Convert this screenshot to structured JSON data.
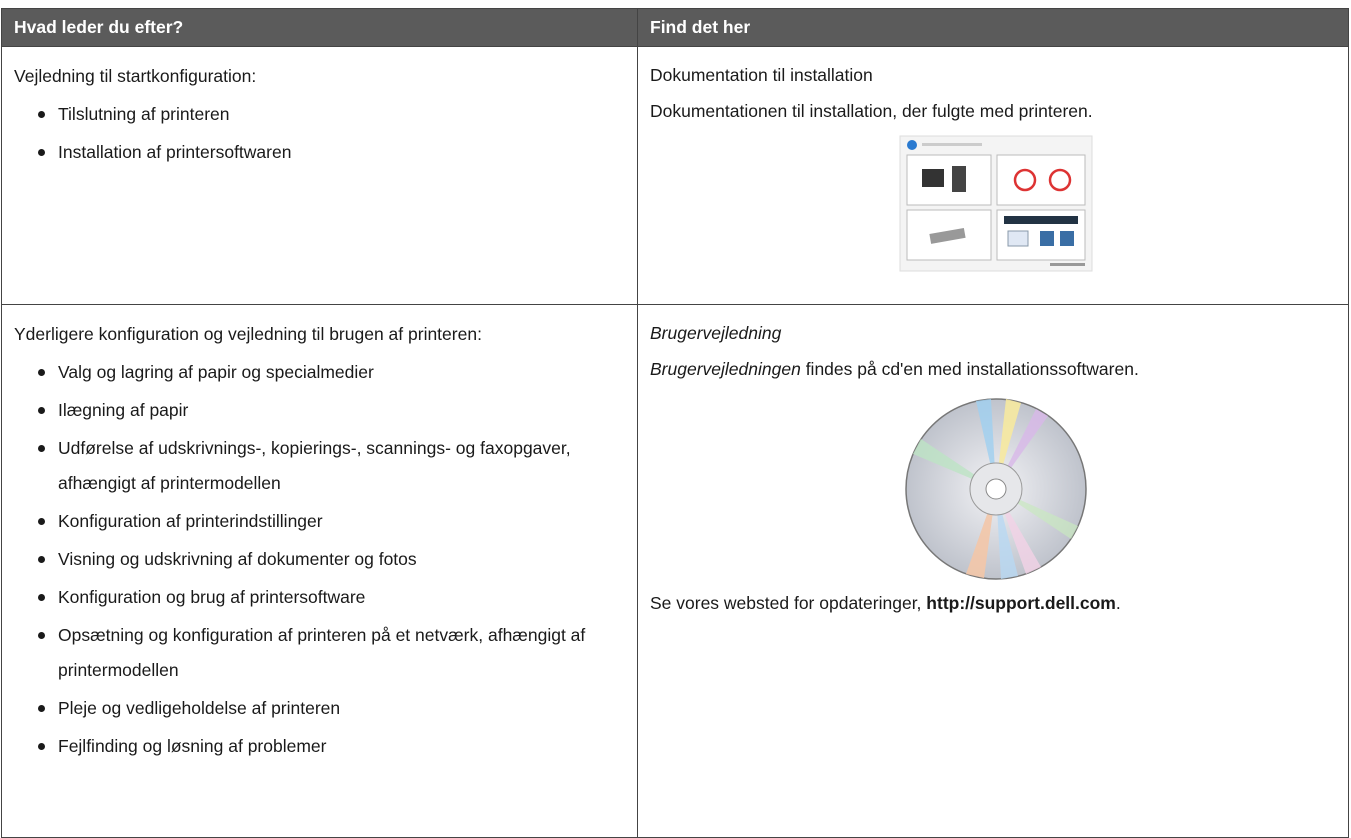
{
  "table": {
    "headers": [
      "Hvad leder du efter?",
      "Find det her"
    ],
    "rows": [
      {
        "left": {
          "intro": "Vejledning til startkonfiguration:",
          "items": [
            "Tilslutning af printeren",
            "Installation af printersoftwaren"
          ]
        },
        "right": {
          "title": "Dokumentation til installation",
          "description": "Dokumentationen til installation, der fulgte med printeren."
        }
      },
      {
        "left": {
          "intro": "Yderligere konfiguration og vejledning til brugen af printeren:",
          "items": [
            "Valg og lagring af papir og specialmedier",
            "Ilægning af papir",
            "Udførelse af udskrivnings-, kopierings-, scannings- og faxopgaver, afhængigt af printermodellen",
            "Konfiguration af printerindstillinger",
            "Visning og udskrivning af dokumenter og fotos",
            "Konfiguration og brug af printersoftware",
            "Opsætning og konfiguration af printeren på et netværk, afhængigt af printermodellen",
            "Pleje og vedligeholdelse af printeren",
            "Fejlfinding og løsning af problemer"
          ]
        },
        "right": {
          "title": "Brugervejledning",
          "description_emphasis": "Brugervejledningen",
          "description_rest": "findes på cd'en med installationssoftwaren.",
          "note_text": "Se vores websted for opdateringer,",
          "note_link": "http://support.dell.com",
          "note_end": "."
        }
      }
    ]
  }
}
